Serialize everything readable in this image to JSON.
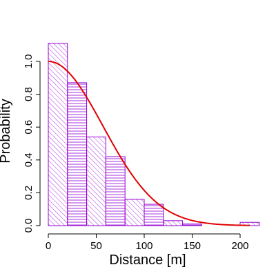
{
  "chart_data": {
    "type": "bar",
    "subtype": "histogram-with-fitted-curve",
    "xlabel": "Distance [m]",
    "ylabel": "Probability",
    "xlim": [
      0,
      220
    ],
    "ylim": [
      0,
      1.1
    ],
    "x_ticks": [
      0,
      50,
      100,
      150,
      200
    ],
    "y_ticks": [
      0.0,
      0.2,
      0.4,
      0.6,
      0.8,
      1.0
    ],
    "x_tick_labels": [
      "0",
      "50",
      "100",
      "150",
      "200"
    ],
    "y_tick_labels": [
      "0.0",
      "0.2",
      "0.4",
      "0.6",
      "0.8",
      "1.0"
    ],
    "grid": false,
    "bins": [
      {
        "x0": 0,
        "x1": 20,
        "value": 1.11
      },
      {
        "x0": 20,
        "x1": 40,
        "value": 0.87
      },
      {
        "x0": 40,
        "x1": 60,
        "value": 0.54
      },
      {
        "x0": 60,
        "x1": 80,
        "value": 0.42
      },
      {
        "x0": 80,
        "x1": 100,
        "value": 0.16
      },
      {
        "x0": 100,
        "x1": 120,
        "value": 0.13
      },
      {
        "x0": 120,
        "x1": 140,
        "value": 0.03
      },
      {
        "x0": 140,
        "x1": 160,
        "value": 0.01
      },
      {
        "x0": 160,
        "x1": 180,
        "value": 0.0
      },
      {
        "x0": 180,
        "x1": 200,
        "value": 0.0
      },
      {
        "x0": 200,
        "x1": 220,
        "value": 0.02
      }
    ],
    "curve": {
      "shape": "half-normal",
      "sigma": 57,
      "x_range": [
        0,
        210
      ]
    },
    "colors": {
      "bar_hatch": "#9400d3",
      "curve": "#e00000",
      "axis": "#000000"
    }
  }
}
